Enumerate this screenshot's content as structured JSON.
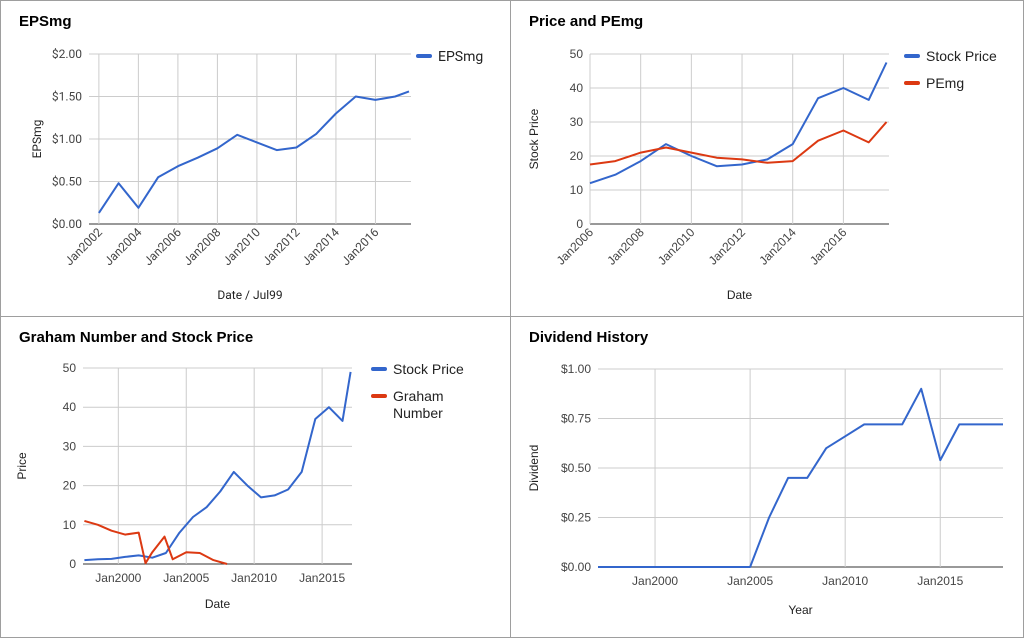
{
  "colors": {
    "blue": "#3366cc",
    "red": "#dc3912",
    "grid": "#cccccc",
    "text": "#444444"
  },
  "chart_data": [
    {
      "type": "line",
      "title": "EPSmg",
      "xlabel": "Date / Jul99",
      "ylabel": "EPSmg",
      "legend_position": "top-right",
      "grid": true,
      "xlim": [
        2001.5,
        2017.8
      ],
      "ylim": [
        0,
        2
      ],
      "x_ticks": [
        2002,
        2004,
        2006,
        2008,
        2010,
        2012,
        2014,
        2016
      ],
      "x_tick_labels": [
        "Jan2002",
        "Jan2004",
        "Jan2006",
        "Jan2008",
        "Jan2010",
        "Jan2012",
        "Jan2014",
        "Jan2016"
      ],
      "y_ticks": [
        0,
        0.5,
        1,
        1.5,
        2
      ],
      "y_tick_labels": [
        "$0.00",
        "$0.50",
        "$1.00",
        "$1.50",
        "$2.00"
      ],
      "series": [
        {
          "name": "EPSmg",
          "color": "#3366cc",
          "x": [
            2002,
            2003,
            2004,
            2005,
            2006,
            2007,
            2008,
            2009,
            2010,
            2011,
            2012,
            2013,
            2014,
            2015,
            2016,
            2017,
            2017.7
          ],
          "y": [
            0.13,
            0.48,
            0.19,
            0.55,
            0.68,
            0.78,
            0.89,
            1.05,
            0.96,
            0.87,
            0.9,
            1.06,
            1.3,
            1.5,
            1.46,
            1.5,
            1.56
          ]
        }
      ]
    },
    {
      "type": "line",
      "title": "Price and PEmg",
      "xlabel": "Date",
      "ylabel": "Stock Price",
      "legend_position": "top-right",
      "grid": true,
      "xlim": [
        2006,
        2017.8
      ],
      "ylim": [
        0,
        50
      ],
      "x_ticks": [
        2006,
        2008,
        2010,
        2012,
        2014,
        2016
      ],
      "x_tick_labels": [
        "Jan2006",
        "Jan2008",
        "Jan2010",
        "Jan2012",
        "Jan2014",
        "Jan2016"
      ],
      "y_ticks": [
        0,
        10,
        20,
        30,
        40,
        50
      ],
      "y_tick_labels": [
        "0",
        "10",
        "20",
        "30",
        "40",
        "50"
      ],
      "series": [
        {
          "name": "Stock Price",
          "color": "#3366cc",
          "x": [
            2006,
            2007,
            2008,
            2009,
            2010,
            2011,
            2012,
            2013,
            2014,
            2015,
            2016,
            2017,
            2017.7
          ],
          "y": [
            12,
            14.5,
            18.5,
            23.5,
            20,
            17,
            17.5,
            19,
            23.5,
            37,
            40,
            36.5,
            47.5
          ]
        },
        {
          "name": "PEmg",
          "color": "#dc3912",
          "x": [
            2006,
            2007,
            2008,
            2009,
            2010,
            2011,
            2012,
            2013,
            2014,
            2015,
            2016,
            2017,
            2017.7
          ],
          "y": [
            17.5,
            18.5,
            21,
            22.5,
            21,
            19.5,
            19,
            18,
            18.5,
            24.5,
            27.5,
            24,
            30
          ]
        }
      ]
    },
    {
      "type": "line",
      "title": "Graham Number and Stock Price",
      "xlabel": "Date",
      "ylabel": "Price",
      "legend_position": "top-right",
      "grid": true,
      "xlim": [
        1997.4,
        2017.2
      ],
      "ylim": [
        0,
        50
      ],
      "x_ticks": [
        2000,
        2005,
        2010,
        2015
      ],
      "x_tick_labels": [
        "Jan2000",
        "Jan2005",
        "Jan2010",
        "Jan2015"
      ],
      "y_ticks": [
        0,
        10,
        20,
        30,
        40,
        50
      ],
      "y_tick_labels": [
        "0",
        "10",
        "20",
        "30",
        "40",
        "50"
      ],
      "series": [
        {
          "name": "Stock Price",
          "color": "#3366cc",
          "x": [
            1997.5,
            1998.5,
            1999.5,
            2000.5,
            2001.5,
            2002.5,
            2003.5,
            2004.5,
            2005.5,
            2006.5,
            2007.5,
            2008.5,
            2009.5,
            2010.5,
            2011.5,
            2012.5,
            2013.5,
            2014.5,
            2015.5,
            2016.5,
            2017.1
          ],
          "y": [
            1,
            1.2,
            1.3,
            1.8,
            2.2,
            1.6,
            2.8,
            8,
            12,
            14.5,
            18.5,
            23.5,
            20,
            17,
            17.5,
            19,
            23.5,
            37,
            40,
            36.5,
            49
          ]
        },
        {
          "name": "Graham Number",
          "color": "#dc3912",
          "x": [
            1997.5,
            1998.5,
            1999.5,
            2000.5,
            2001.5,
            2002,
            2002.5,
            2003.4,
            2004,
            2005,
            2006,
            2007,
            2008
          ],
          "y": [
            11,
            10,
            8.5,
            7.5,
            8,
            0.2,
            3,
            7,
            1.2,
            3,
            2.8,
            1,
            0
          ]
        }
      ]
    },
    {
      "type": "line",
      "title": "Dividend History",
      "xlabel": "Year",
      "ylabel": "Dividend",
      "grid": true,
      "xlim": [
        1997,
        2018.3
      ],
      "ylim": [
        0,
        1
      ],
      "x_ticks": [
        2000,
        2005,
        2010,
        2015
      ],
      "x_tick_labels": [
        "Jan2000",
        "Jan2005",
        "Jan2010",
        "Jan2015"
      ],
      "y_ticks": [
        0,
        0.25,
        0.5,
        0.75,
        1
      ],
      "y_tick_labels": [
        "$0.00",
        "$0.25",
        "$0.50",
        "$0.75",
        "$1.00"
      ],
      "series": [
        {
          "name": "",
          "color": "#3366cc",
          "x": [
            1997,
            2005,
            2006,
            2007,
            2008,
            2009,
            2010,
            2011,
            2012,
            2013,
            2014,
            2015,
            2016,
            2017,
            2018.3
          ],
          "y": [
            0,
            0,
            0.25,
            0.45,
            0.45,
            0.6,
            0.66,
            0.72,
            0.72,
            0.72,
            0.9,
            0.54,
            0.72,
            0.72,
            0.72
          ]
        }
      ]
    }
  ]
}
